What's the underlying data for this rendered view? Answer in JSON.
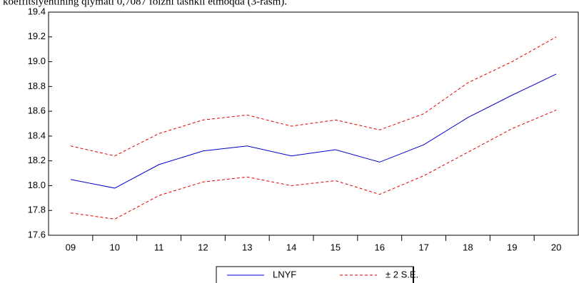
{
  "chart_data": {
    "type": "line",
    "caption": "koeffitsiyentining qiymati 0,7087 foizni tashkil etmoqda (3-rasm).",
    "categories": [
      "09",
      "10",
      "11",
      "12",
      "13",
      "14",
      "15",
      "16",
      "17",
      "18",
      "19",
      "20"
    ],
    "series": [
      {
        "name": "LNYF",
        "color": "#0000cc",
        "dash": false,
        "values": [
          18.05,
          17.98,
          18.17,
          18.28,
          18.32,
          18.24,
          18.29,
          18.19,
          18.33,
          18.55,
          18.73,
          18.9
        ]
      },
      {
        "name": "± 2 S.E.",
        "color": "#e00000",
        "dash": true,
        "values": [
          18.32,
          18.24,
          18.42,
          18.53,
          18.57,
          18.48,
          18.53,
          18.45,
          18.58,
          18.83,
          19.0,
          19.2
        ],
        "lower_values": [
          17.78,
          17.73,
          17.92,
          18.03,
          18.07,
          18.0,
          18.04,
          17.93,
          18.08,
          18.27,
          18.46,
          18.61
        ]
      }
    ],
    "ylim": [
      17.6,
      19.4
    ],
    "yticks": [
      17.6,
      17.8,
      {
        "value": 18.0,
        "label": "18.0"
      },
      18.2,
      18.4,
      18.6,
      18.8,
      {
        "value": 19.0,
        "label": "19.0"
      },
      19.2,
      19.4
    ],
    "legend": "bottom"
  }
}
